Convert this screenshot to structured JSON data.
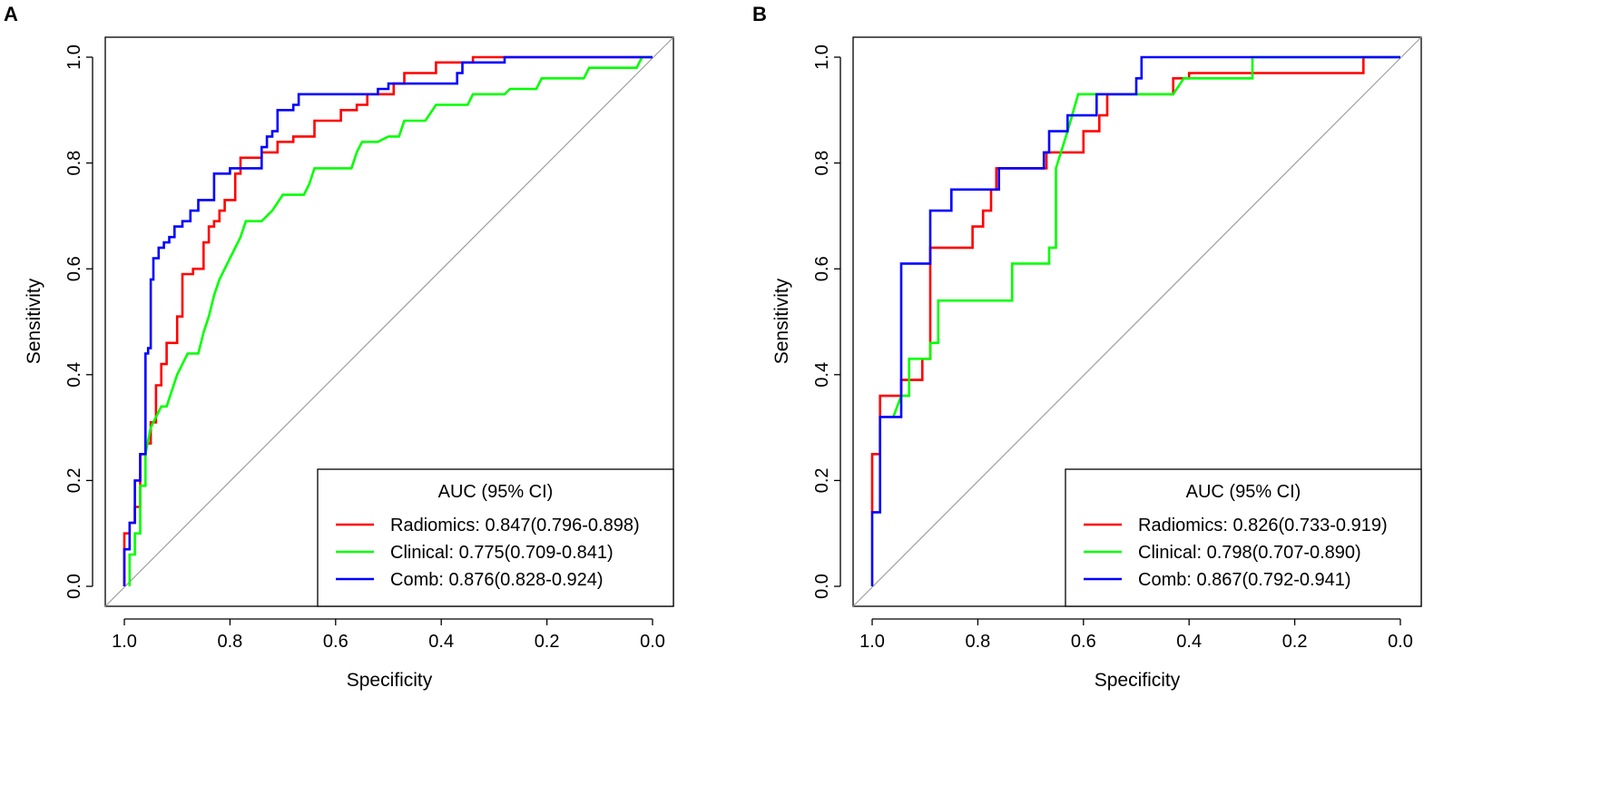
{
  "chart_data": [
    {
      "type": "line",
      "panel_label": "A",
      "xlabel": "Specificity",
      "ylabel": "Sensitivity",
      "xlim": [
        1.0,
        0.0
      ],
      "ylim": [
        0.0,
        1.0
      ],
      "x_ticks": [
        "1.0",
        "0.8",
        "0.6",
        "0.4",
        "0.2",
        "0.0"
      ],
      "y_ticks": [
        "0.0",
        "0.2",
        "0.4",
        "0.6",
        "0.8",
        "1.0"
      ],
      "reference_line": "diagonal",
      "legend": {
        "title": "AUC (95% CI)",
        "position": "bottom-right",
        "entries": [
          {
            "label": "Radiomics: 0.847(0.796-0.898)",
            "color": "#ff0000"
          },
          {
            "label": "Clinical: 0.775(0.709-0.841)",
            "color": "#00ff00"
          },
          {
            "label": "Comb: 0.876(0.828-0.924)",
            "color": "#0000ff"
          }
        ]
      },
      "series": [
        {
          "name": "Radiomics",
          "color": "#ff0000",
          "points": [
            [
              1.0,
              0.0
            ],
            [
              1.0,
              0.1
            ],
            [
              0.99,
              0.1
            ],
            [
              0.99,
              0.12
            ],
            [
              0.98,
              0.12
            ],
            [
              0.98,
              0.15
            ],
            [
              0.97,
              0.15
            ],
            [
              0.97,
              0.25
            ],
            [
              0.96,
              0.25
            ],
            [
              0.96,
              0.27
            ],
            [
              0.95,
              0.27
            ],
            [
              0.95,
              0.31
            ],
            [
              0.94,
              0.31
            ],
            [
              0.94,
              0.38
            ],
            [
              0.93,
              0.38
            ],
            [
              0.93,
              0.42
            ],
            [
              0.92,
              0.42
            ],
            [
              0.92,
              0.46
            ],
            [
              0.9,
              0.46
            ],
            [
              0.9,
              0.51
            ],
            [
              0.89,
              0.51
            ],
            [
              0.89,
              0.59
            ],
            [
              0.87,
              0.59
            ],
            [
              0.87,
              0.6
            ],
            [
              0.85,
              0.6
            ],
            [
              0.85,
              0.65
            ],
            [
              0.84,
              0.65
            ],
            [
              0.84,
              0.68
            ],
            [
              0.83,
              0.68
            ],
            [
              0.83,
              0.69
            ],
            [
              0.82,
              0.69
            ],
            [
              0.82,
              0.71
            ],
            [
              0.81,
              0.71
            ],
            [
              0.81,
              0.73
            ],
            [
              0.79,
              0.73
            ],
            [
              0.79,
              0.78
            ],
            [
              0.78,
              0.78
            ],
            [
              0.78,
              0.81
            ],
            [
              0.74,
              0.81
            ],
            [
              0.74,
              0.82
            ],
            [
              0.71,
              0.82
            ],
            [
              0.71,
              0.84
            ],
            [
              0.68,
              0.84
            ],
            [
              0.68,
              0.85
            ],
            [
              0.64,
              0.85
            ],
            [
              0.64,
              0.88
            ],
            [
              0.59,
              0.88
            ],
            [
              0.59,
              0.9
            ],
            [
              0.56,
              0.9
            ],
            [
              0.56,
              0.91
            ],
            [
              0.54,
              0.91
            ],
            [
              0.54,
              0.93
            ],
            [
              0.49,
              0.93
            ],
            [
              0.49,
              0.95
            ],
            [
              0.47,
              0.95
            ],
            [
              0.47,
              0.97
            ],
            [
              0.41,
              0.97
            ],
            [
              0.41,
              0.99
            ],
            [
              0.34,
              0.99
            ],
            [
              0.34,
              1.0
            ],
            [
              0.0,
              1.0
            ]
          ]
        },
        {
          "name": "Clinical",
          "color": "#00ff00",
          "points": [
            [
              0.99,
              0.0
            ],
            [
              0.99,
              0.06
            ],
            [
              0.98,
              0.06
            ],
            [
              0.98,
              0.1
            ],
            [
              0.97,
              0.1
            ],
            [
              0.97,
              0.19
            ],
            [
              0.96,
              0.19
            ],
            [
              0.96,
              0.25
            ],
            [
              0.95,
              0.3
            ],
            [
              0.94,
              0.32
            ],
            [
              0.93,
              0.34
            ],
            [
              0.92,
              0.34
            ],
            [
              0.91,
              0.37
            ],
            [
              0.9,
              0.4
            ],
            [
              0.89,
              0.42
            ],
            [
              0.88,
              0.44
            ],
            [
              0.86,
              0.44
            ],
            [
              0.85,
              0.48
            ],
            [
              0.84,
              0.51
            ],
            [
              0.83,
              0.55
            ],
            [
              0.82,
              0.58
            ],
            [
              0.81,
              0.6
            ],
            [
              0.8,
              0.62
            ],
            [
              0.79,
              0.64
            ],
            [
              0.78,
              0.66
            ],
            [
              0.77,
              0.69
            ],
            [
              0.74,
              0.69
            ],
            [
              0.72,
              0.71
            ],
            [
              0.7,
              0.74
            ],
            [
              0.66,
              0.74
            ],
            [
              0.65,
              0.76
            ],
            [
              0.64,
              0.79
            ],
            [
              0.57,
              0.79
            ],
            [
              0.56,
              0.82
            ],
            [
              0.55,
              0.84
            ],
            [
              0.52,
              0.84
            ],
            [
              0.5,
              0.85
            ],
            [
              0.48,
              0.85
            ],
            [
              0.47,
              0.88
            ],
            [
              0.43,
              0.88
            ],
            [
              0.41,
              0.91
            ],
            [
              0.35,
              0.91
            ],
            [
              0.34,
              0.93
            ],
            [
              0.28,
              0.93
            ],
            [
              0.27,
              0.94
            ],
            [
              0.22,
              0.94
            ],
            [
              0.21,
              0.96
            ],
            [
              0.13,
              0.96
            ],
            [
              0.12,
              0.98
            ],
            [
              0.03,
              0.98
            ],
            [
              0.02,
              1.0
            ],
            [
              0.0,
              1.0
            ]
          ]
        },
        {
          "name": "Comb",
          "color": "#0000ff",
          "points": [
            [
              1.0,
              0.0
            ],
            [
              1.0,
              0.07
            ],
            [
              0.99,
              0.07
            ],
            [
              0.99,
              0.12
            ],
            [
              0.98,
              0.12
            ],
            [
              0.98,
              0.2
            ],
            [
              0.97,
              0.2
            ],
            [
              0.97,
              0.25
            ],
            [
              0.96,
              0.25
            ],
            [
              0.96,
              0.44
            ],
            [
              0.955,
              0.44
            ],
            [
              0.955,
              0.45
            ],
            [
              0.95,
              0.45
            ],
            [
              0.95,
              0.58
            ],
            [
              0.945,
              0.58
            ],
            [
              0.945,
              0.62
            ],
            [
              0.935,
              0.62
            ],
            [
              0.935,
              0.64
            ],
            [
              0.925,
              0.64
            ],
            [
              0.925,
              0.65
            ],
            [
              0.915,
              0.65
            ],
            [
              0.915,
              0.66
            ],
            [
              0.905,
              0.66
            ],
            [
              0.905,
              0.68
            ],
            [
              0.89,
              0.68
            ],
            [
              0.89,
              0.69
            ],
            [
              0.875,
              0.69
            ],
            [
              0.875,
              0.71
            ],
            [
              0.86,
              0.71
            ],
            [
              0.86,
              0.73
            ],
            [
              0.83,
              0.73
            ],
            [
              0.83,
              0.78
            ],
            [
              0.8,
              0.78
            ],
            [
              0.8,
              0.79
            ],
            [
              0.74,
              0.79
            ],
            [
              0.74,
              0.83
            ],
            [
              0.73,
              0.83
            ],
            [
              0.73,
              0.85
            ],
            [
              0.72,
              0.85
            ],
            [
              0.72,
              0.86
            ],
            [
              0.71,
              0.86
            ],
            [
              0.71,
              0.9
            ],
            [
              0.68,
              0.9
            ],
            [
              0.68,
              0.91
            ],
            [
              0.67,
              0.91
            ],
            [
              0.67,
              0.93
            ],
            [
              0.52,
              0.93
            ],
            [
              0.52,
              0.94
            ],
            [
              0.5,
              0.94
            ],
            [
              0.5,
              0.95
            ],
            [
              0.37,
              0.95
            ],
            [
              0.37,
              0.97
            ],
            [
              0.36,
              0.97
            ],
            [
              0.36,
              0.99
            ],
            [
              0.28,
              0.99
            ],
            [
              0.28,
              1.0
            ],
            [
              0.0,
              1.0
            ]
          ]
        }
      ]
    },
    {
      "type": "line",
      "panel_label": "B",
      "xlabel": "Specificity",
      "ylabel": "Sensitivity",
      "xlim": [
        1.0,
        0.0
      ],
      "ylim": [
        0.0,
        1.0
      ],
      "x_ticks": [
        "1.0",
        "0.8",
        "0.6",
        "0.4",
        "0.2",
        "0.0"
      ],
      "y_ticks": [
        "0.0",
        "0.2",
        "0.4",
        "0.6",
        "0.8",
        "1.0"
      ],
      "reference_line": "diagonal",
      "legend": {
        "title": "AUC (95% CI)",
        "position": "bottom-right",
        "entries": [
          {
            "label": "Radiomics: 0.826(0.733-0.919)",
            "color": "#ff0000"
          },
          {
            "label": "Clinical: 0.798(0.707-0.890)",
            "color": "#00ff00"
          },
          {
            "label": "Comb: 0.867(0.792-0.941)",
            "color": "#0000ff"
          }
        ]
      },
      "series": [
        {
          "name": "Radiomics",
          "color": "#ff0000",
          "points": [
            [
              1.0,
              0.14
            ],
            [
              1.0,
              0.25
            ],
            [
              0.985,
              0.25
            ],
            [
              0.985,
              0.36
            ],
            [
              0.945,
              0.36
            ],
            [
              0.945,
              0.39
            ],
            [
              0.905,
              0.39
            ],
            [
              0.905,
              0.43
            ],
            [
              0.89,
              0.43
            ],
            [
              0.89,
              0.64
            ],
            [
              0.81,
              0.64
            ],
            [
              0.81,
              0.68
            ],
            [
              0.79,
              0.68
            ],
            [
              0.79,
              0.71
            ],
            [
              0.775,
              0.71
            ],
            [
              0.775,
              0.75
            ],
            [
              0.765,
              0.75
            ],
            [
              0.765,
              0.79
            ],
            [
              0.67,
              0.79
            ],
            [
              0.67,
              0.82
            ],
            [
              0.6,
              0.82
            ],
            [
              0.6,
              0.86
            ],
            [
              0.57,
              0.86
            ],
            [
              0.57,
              0.89
            ],
            [
              0.555,
              0.89
            ],
            [
              0.555,
              0.93
            ],
            [
              0.43,
              0.93
            ],
            [
              0.43,
              0.96
            ],
            [
              0.4,
              0.96
            ],
            [
              0.4,
              0.97
            ],
            [
              0.07,
              0.97
            ],
            [
              0.07,
              1.0
            ],
            [
              0.0,
              1.0
            ]
          ]
        },
        {
          "name": "Clinical",
          "color": "#00ff00",
          "points": [
            [
              0.96,
              0.32
            ],
            [
              0.945,
              0.36
            ],
            [
              0.93,
              0.36
            ],
            [
              0.93,
              0.43
            ],
            [
              0.89,
              0.43
            ],
            [
              0.89,
              0.46
            ],
            [
              0.875,
              0.46
            ],
            [
              0.875,
              0.54
            ],
            [
              0.735,
              0.54
            ],
            [
              0.735,
              0.61
            ],
            [
              0.665,
              0.61
            ],
            [
              0.665,
              0.64
            ],
            [
              0.652,
              0.64
            ],
            [
              0.652,
              0.79
            ],
            [
              0.63,
              0.86
            ],
            [
              0.61,
              0.93
            ],
            [
              0.43,
              0.93
            ],
            [
              0.41,
              0.96
            ],
            [
              0.28,
              0.96
            ],
            [
              0.28,
              1.0
            ],
            [
              0.0,
              1.0
            ]
          ]
        },
        {
          "name": "Comb",
          "color": "#0000ff",
          "points": [
            [
              1.0,
              0.0
            ],
            [
              1.0,
              0.14
            ],
            [
              0.985,
              0.14
            ],
            [
              0.985,
              0.32
            ],
            [
              0.945,
              0.32
            ],
            [
              0.945,
              0.61
            ],
            [
              0.89,
              0.61
            ],
            [
              0.89,
              0.71
            ],
            [
              0.85,
              0.71
            ],
            [
              0.85,
              0.75
            ],
            [
              0.76,
              0.75
            ],
            [
              0.76,
              0.79
            ],
            [
              0.675,
              0.79
            ],
            [
              0.675,
              0.82
            ],
            [
              0.665,
              0.82
            ],
            [
              0.665,
              0.86
            ],
            [
              0.63,
              0.86
            ],
            [
              0.63,
              0.89
            ],
            [
              0.575,
              0.89
            ],
            [
              0.575,
              0.93
            ],
            [
              0.5,
              0.93
            ],
            [
              0.5,
              0.96
            ],
            [
              0.49,
              0.96
            ],
            [
              0.49,
              1.0
            ],
            [
              0.0,
              1.0
            ]
          ]
        }
      ]
    }
  ]
}
